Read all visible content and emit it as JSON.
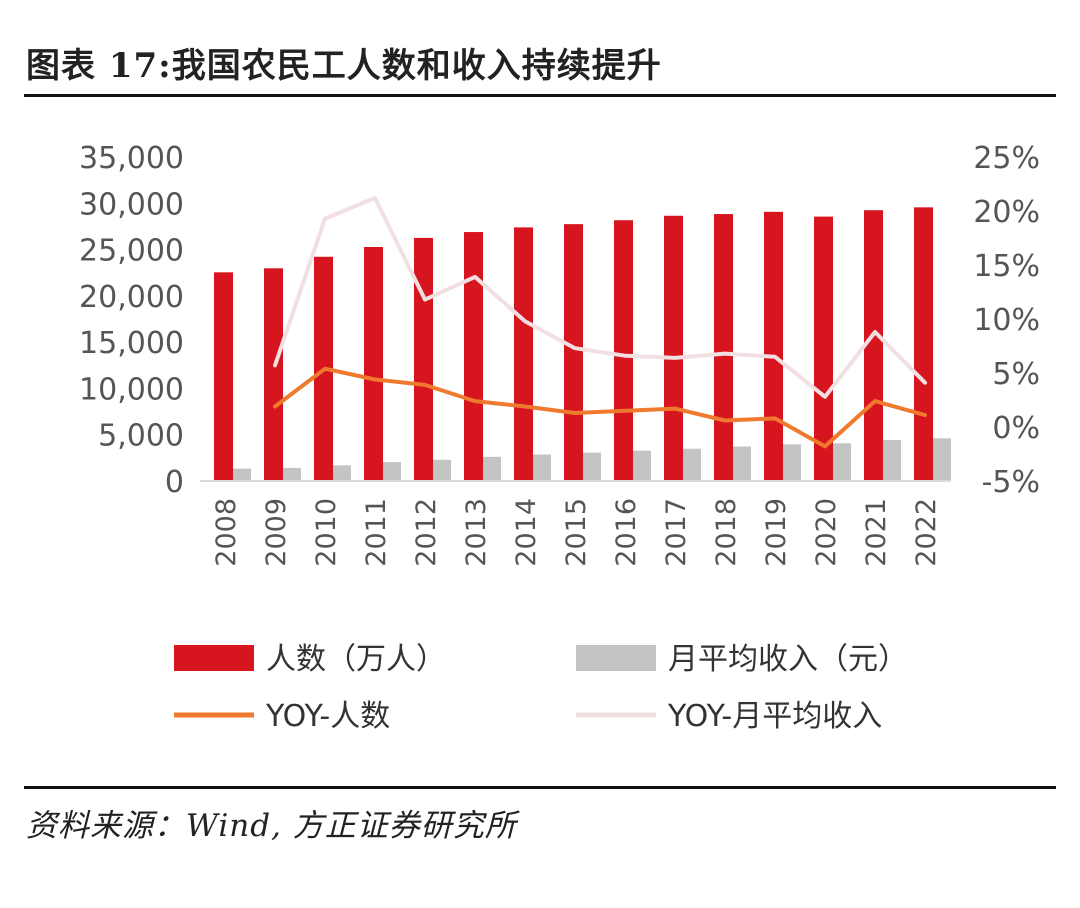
{
  "header": {
    "title": "图表 17:我国农民工人数和收入持续提升"
  },
  "footer": {
    "source": "资料来源：Wind, 方正证券研究所"
  },
  "colors": {
    "bar_people": "#d7151f",
    "bar_income": "#c4c4c4",
    "line_people": "#ef7a2e",
    "line_income": "#f2dfe1"
  },
  "chart_data": {
    "type": "bar",
    "categories": [
      "2008",
      "2009",
      "2010",
      "2011",
      "2012",
      "2013",
      "2014",
      "2015",
      "2016",
      "2017",
      "2018",
      "2019",
      "2020",
      "2021",
      "2022"
    ],
    "series": [
      {
        "name": "人数（万人）",
        "kind": "bar",
        "axis": "left",
        "values": [
          22542,
          22978,
          24223,
          25278,
          26261,
          26894,
          27395,
          27747,
          28171,
          28652,
          28836,
          29077,
          28560,
          29251,
          29562
        ]
      },
      {
        "name": "月平均收入（元）",
        "kind": "bar",
        "axis": "left",
        "values": [
          1340,
          1417,
          1690,
          2049,
          2290,
          2609,
          2864,
          3072,
          3275,
          3485,
          3721,
          3962,
          4072,
          4432,
          4615
        ]
      },
      {
        "name": "YOY-人数",
        "kind": "line",
        "axis": "right",
        "values": [
          null,
          1.9,
          5.4,
          4.4,
          3.9,
          2.4,
          1.9,
          1.3,
          1.5,
          1.7,
          0.6,
          0.8,
          -1.8,
          2.4,
          1.1
        ]
      },
      {
        "name": "YOY-月平均收入",
        "kind": "line",
        "axis": "right",
        "values": [
          null,
          5.7,
          19.3,
          21.2,
          11.8,
          13.9,
          9.8,
          7.3,
          6.6,
          6.4,
          6.8,
          6.5,
          2.8,
          8.8,
          4.1
        ]
      }
    ],
    "left_axis": {
      "ylim": [
        0,
        35000
      ],
      "ticks": [
        "0",
        "5,000",
        "10,000",
        "15,000",
        "20,000",
        "25,000",
        "30,000",
        "35,000"
      ]
    },
    "right_axis": {
      "ylim": [
        -5,
        25
      ],
      "ticks": [
        "-5%",
        "0%",
        "5%",
        "10%",
        "15%",
        "20%",
        "25%"
      ]
    },
    "legend": [
      "人数（万人）",
      "月平均收入（元）",
      "YOY-人数",
      "YOY-月平均收入"
    ]
  }
}
